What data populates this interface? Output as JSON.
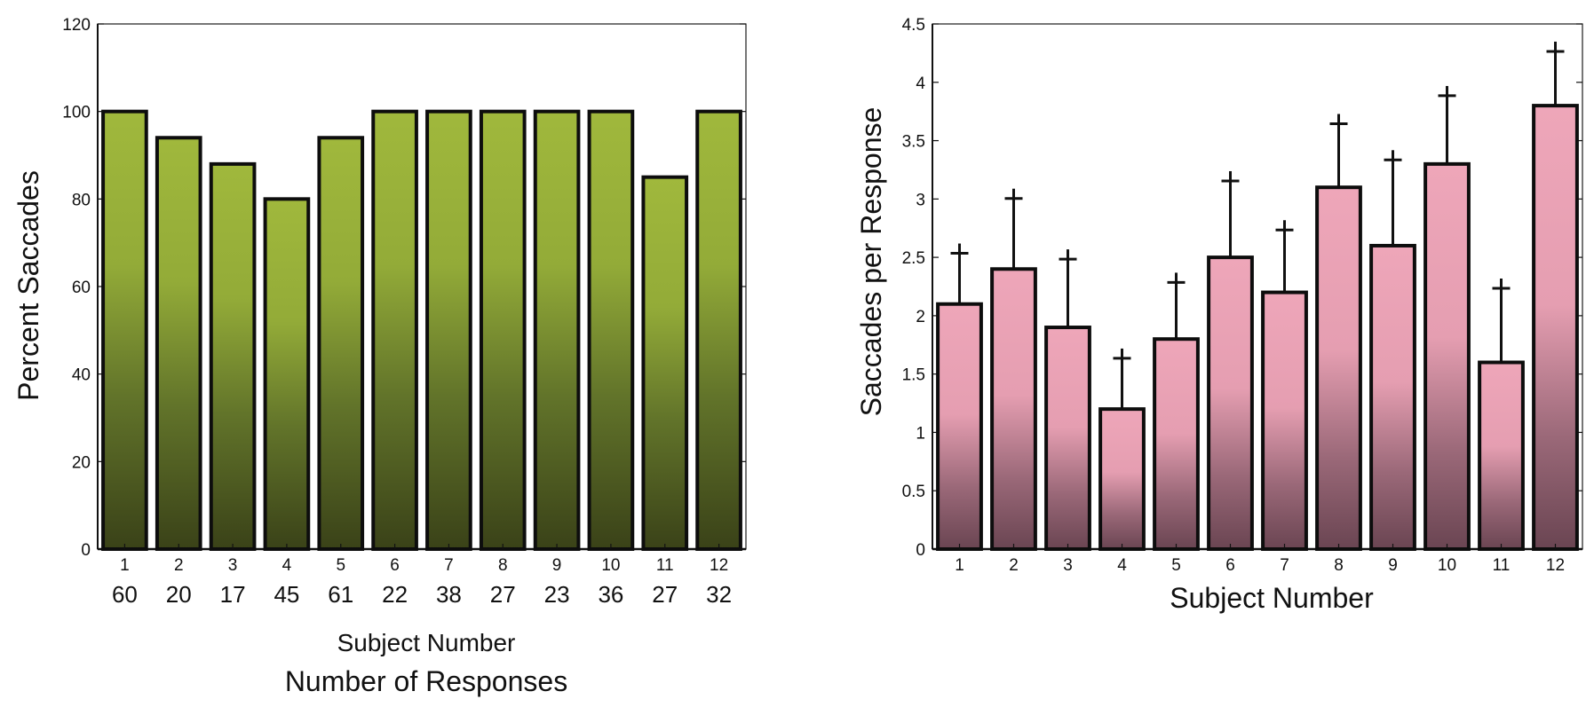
{
  "chart_data": [
    {
      "type": "bar",
      "categories": [
        "1",
        "2",
        "3",
        "4",
        "5",
        "6",
        "7",
        "8",
        "9",
        "10",
        "11",
        "12"
      ],
      "values": [
        100,
        94,
        88,
        80,
        94,
        100,
        100,
        100,
        100,
        100,
        85,
        100
      ],
      "secondary_labels": [
        "60",
        "20",
        "17",
        "45",
        "61",
        "22",
        "38",
        "27",
        "23",
        "36",
        "27",
        "32"
      ],
      "title": "",
      "xlabel": "Subject Number",
      "xlabel2": "Number of Responses",
      "ylabel": "Percent Saccades",
      "ylim": [
        0,
        120
      ],
      "yticks": [
        "0",
        "20",
        "40",
        "60",
        "80",
        "100",
        "120"
      ],
      "bar_color": "#9db53a",
      "bar_color_dark": "#3a4218",
      "grid": false
    },
    {
      "type": "bar",
      "categories": [
        "1",
        "2",
        "3",
        "4",
        "5",
        "6",
        "7",
        "8",
        "9",
        "10",
        "11",
        "12"
      ],
      "values": [
        2.1,
        2.4,
        1.9,
        1.2,
        1.8,
        2.5,
        2.2,
        3.1,
        2.6,
        3.3,
        1.6,
        3.8
      ],
      "error_upper": [
        0.45,
        0.62,
        0.6,
        0.45,
        0.5,
        0.67,
        0.55,
        0.56,
        0.75,
        0.6,
        0.65,
        0.48
      ],
      "title": "",
      "xlabel": "Subject Number",
      "ylabel": "Saccades per Response",
      "ylim": [
        0,
        4.5
      ],
      "yticks": [
        "0",
        "0.5",
        "1",
        "1.5",
        "2",
        "2.5",
        "3",
        "3.5",
        "4",
        "4.5"
      ],
      "bar_color": "#eea6b9",
      "bar_color_dark": "#6a4552",
      "grid": false
    }
  ]
}
